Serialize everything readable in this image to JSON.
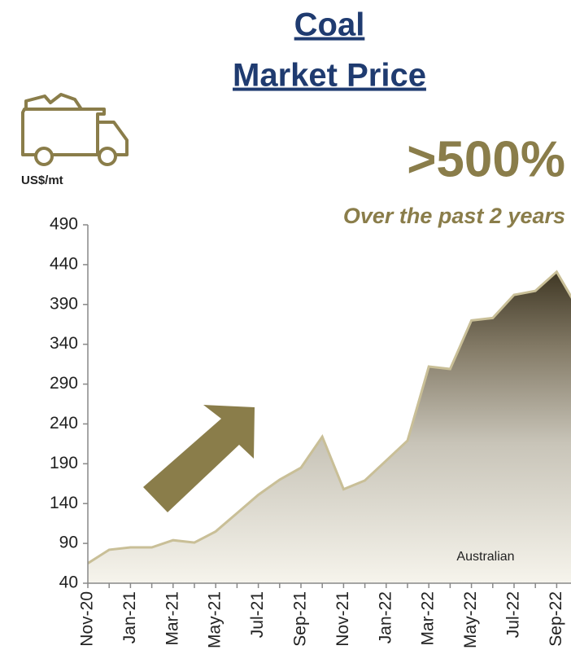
{
  "chart_data": {
    "type": "area",
    "title": "Coal",
    "subtitle": "Market Price",
    "y_label": "US$/mt",
    "annotations": [
      ">500%",
      "Over the past 2 years"
    ],
    "categories": [
      "Nov-20",
      null,
      "Jan-21",
      null,
      "Mar-21",
      null,
      "May-21",
      null,
      "Jul-21",
      null,
      "Sep-21",
      null,
      "Nov-21",
      null,
      "Jan-22",
      null,
      "Mar-22",
      null,
      "May-22",
      null,
      "Jul-22",
      null,
      "Sep-22",
      null
    ],
    "series": [
      {
        "name": "Australian",
        "color": "#c9bf97",
        "values": [
          65,
          82,
          85,
          85,
          94,
          91,
          105,
          128,
          151,
          170,
          185,
          224,
          158,
          169,
          194,
          219,
          312,
          309,
          370,
          373,
          402,
          407,
          431,
          385
        ]
      }
    ],
    "ylim": [
      40,
      490
    ],
    "yticks": [
      40,
      90,
      140,
      190,
      240,
      290,
      340,
      390,
      440,
      490
    ]
  }
}
